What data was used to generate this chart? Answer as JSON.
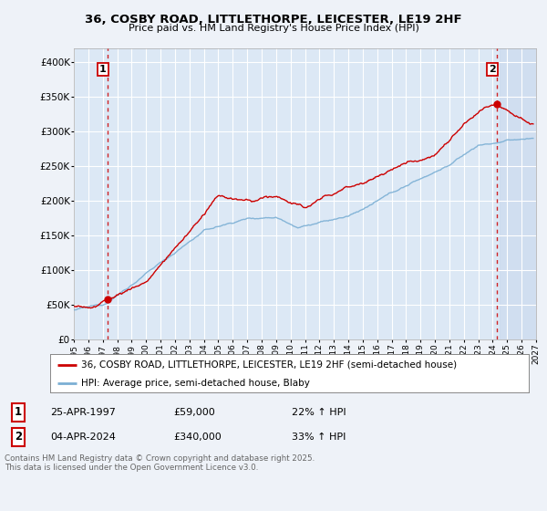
{
  "title": "36, COSBY ROAD, LITTLETHORPE, LEICESTER, LE19 2HF",
  "subtitle": "Price paid vs. HM Land Registry's House Price Index (HPI)",
  "background_color": "#eef2f8",
  "plot_bg_color": "#dce8f5",
  "grid_color": "#ffffff",
  "legend_label_red": "36, COSBY ROAD, LITTLETHORPE, LEICESTER, LE19 2HF (semi-detached house)",
  "legend_label_blue": "HPI: Average price, semi-detached house, Blaby",
  "footnote": "Contains HM Land Registry data © Crown copyright and database right 2025.\nThis data is licensed under the Open Government Licence v3.0.",
  "marker1_date": 1997.32,
  "marker1_price": 59000,
  "marker2_date": 2024.27,
  "marker2_price": 340000,
  "xmin": 1995.0,
  "xmax": 2027.0,
  "ymin": 0,
  "ymax": 420000,
  "red_color": "#cc0000",
  "blue_color": "#7bafd4",
  "shading_color": "#c8d8ee",
  "future_start": 2024.5
}
